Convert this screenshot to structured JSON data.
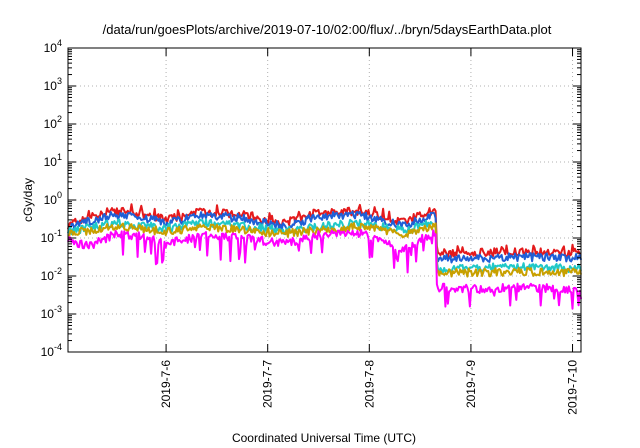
{
  "chart_data": {
    "type": "area",
    "title": "/data/run/goesPlots/archive/2019-07-10/02:00/flux/../bryn/5daysEarthData.plot",
    "xlabel": "Coordinated Universal Time (UTC)",
    "ylabel": "cGy/day",
    "yscale": "log",
    "ylim": [
      0.0001,
      10000
    ],
    "ytick_labels": [
      {
        "base": "10",
        "exp": "-4"
      },
      {
        "base": "10",
        "exp": "-3"
      },
      {
        "base": "10",
        "exp": "-2"
      },
      {
        "base": "10",
        "exp": "-1"
      },
      {
        "base": "10",
        "exp": "0"
      },
      {
        "base": "10",
        "exp": "1"
      },
      {
        "base": "10",
        "exp": "2"
      },
      {
        "base": "10",
        "exp": "3"
      },
      {
        "base": "10",
        "exp": "4"
      }
    ],
    "xlim": [
      "2019-07-05 00:50",
      "2019-07-10 02:00"
    ],
    "xtick_labels": [
      "2019-7-6",
      "2019-7-7",
      "2019-7-8",
      "2019-7-9",
      "2019-7-10"
    ],
    "grid": true,
    "legend": "none",
    "series": [
      {
        "color": "#e41a1c",
        "samples": [
          {
            "x": "2019-07-05 00:50",
            "y": 0.22
          },
          {
            "x": "2019-07-05 06:00",
            "y": 0.35
          },
          {
            "x": "2019-07-05 12:00",
            "y": 0.5
          },
          {
            "x": "2019-07-05 18:00",
            "y": 0.45
          },
          {
            "x": "2019-07-06 00:00",
            "y": 0.3
          },
          {
            "x": "2019-07-06 09:00",
            "y": 0.5
          },
          {
            "x": "2019-07-06 18:00",
            "y": 0.42
          },
          {
            "x": "2019-07-07 04:00",
            "y": 0.25
          },
          {
            "x": "2019-07-07 12:00",
            "y": 0.48
          },
          {
            "x": "2019-07-07 22:00",
            "y": 0.5
          },
          {
            "x": "2019-07-08 04:00",
            "y": 0.35
          },
          {
            "x": "2019-07-08 08:00",
            "y": 0.25
          },
          {
            "x": "2019-07-08 14:00",
            "y": 0.48
          },
          {
            "x": "2019-07-08 15:40",
            "y": 0.5
          },
          {
            "x": "2019-07-08 16:00",
            "y": 0.04
          },
          {
            "x": "2019-07-09 00:00",
            "y": 0.04
          },
          {
            "x": "2019-07-09 12:00",
            "y": 0.045
          },
          {
            "x": "2019-07-10 02:00",
            "y": 0.04
          }
        ]
      },
      {
        "color": "#1f5fd6",
        "samples": [
          {
            "x": "2019-07-05 00:50",
            "y": 0.18
          },
          {
            "x": "2019-07-05 06:00",
            "y": 0.28
          },
          {
            "x": "2019-07-05 12:00",
            "y": 0.4
          },
          {
            "x": "2019-07-05 18:00",
            "y": 0.36
          },
          {
            "x": "2019-07-06 00:00",
            "y": 0.24
          },
          {
            "x": "2019-07-06 09:00",
            "y": 0.4
          },
          {
            "x": "2019-07-06 18:00",
            "y": 0.33
          },
          {
            "x": "2019-07-07 04:00",
            "y": 0.2
          },
          {
            "x": "2019-07-07 12:00",
            "y": 0.38
          },
          {
            "x": "2019-07-07 22:00",
            "y": 0.4
          },
          {
            "x": "2019-07-08 04:00",
            "y": 0.28
          },
          {
            "x": "2019-07-08 08:00",
            "y": 0.2
          },
          {
            "x": "2019-07-08 14:00",
            "y": 0.38
          },
          {
            "x": "2019-07-08 15:40",
            "y": 0.4
          },
          {
            "x": "2019-07-08 16:00",
            "y": 0.03
          },
          {
            "x": "2019-07-09 00:00",
            "y": 0.028
          },
          {
            "x": "2019-07-09 12:00",
            "y": 0.032
          },
          {
            "x": "2019-07-10 02:00",
            "y": 0.03
          }
        ]
      },
      {
        "color": "#20c8c8",
        "samples": [
          {
            "x": "2019-07-05 00:50",
            "y": 0.15
          },
          {
            "x": "2019-07-05 12:00",
            "y": 0.25
          },
          {
            "x": "2019-07-06 00:00",
            "y": 0.18
          },
          {
            "x": "2019-07-06 09:00",
            "y": 0.25
          },
          {
            "x": "2019-07-07 04:00",
            "y": 0.16
          },
          {
            "x": "2019-07-07 22:00",
            "y": 0.25
          },
          {
            "x": "2019-07-08 08:00",
            "y": 0.16
          },
          {
            "x": "2019-07-08 15:40",
            "y": 0.25
          },
          {
            "x": "2019-07-08 16:00",
            "y": 0.016
          },
          {
            "x": "2019-07-09 12:00",
            "y": 0.017
          },
          {
            "x": "2019-07-10 02:00",
            "y": 0.016
          }
        ]
      },
      {
        "color": "#c8a000",
        "samples": [
          {
            "x": "2019-07-05 00:50",
            "y": 0.13
          },
          {
            "x": "2019-07-05 12:00",
            "y": 0.2
          },
          {
            "x": "2019-07-06 00:00",
            "y": 0.15
          },
          {
            "x": "2019-07-06 09:00",
            "y": 0.2
          },
          {
            "x": "2019-07-07 04:00",
            "y": 0.13
          },
          {
            "x": "2019-07-07 22:00",
            "y": 0.2
          },
          {
            "x": "2019-07-08 08:00",
            "y": 0.13
          },
          {
            "x": "2019-07-08 15:40",
            "y": 0.2
          },
          {
            "x": "2019-07-08 16:00",
            "y": 0.012
          },
          {
            "x": "2019-07-09 12:00",
            "y": 0.013
          },
          {
            "x": "2019-07-10 02:00",
            "y": 0.012
          }
        ]
      },
      {
        "color": "#ff00ff",
        "samples": [
          {
            "x": "2019-07-05 00:50",
            "y": 0.09
          },
          {
            "x": "2019-07-05 06:00",
            "y": 0.06
          },
          {
            "x": "2019-07-05 12:00",
            "y": 0.13
          },
          {
            "x": "2019-07-05 18:00",
            "y": 0.11
          },
          {
            "x": "2019-07-06 00:00",
            "y": 0.07
          },
          {
            "x": "2019-07-06 09:00",
            "y": 0.12
          },
          {
            "x": "2019-07-06 18:00",
            "y": 0.1
          },
          {
            "x": "2019-07-07 04:00",
            "y": 0.07
          },
          {
            "x": "2019-07-07 12:00",
            "y": 0.12
          },
          {
            "x": "2019-07-07 22:00",
            "y": 0.13
          },
          {
            "x": "2019-07-08 04:00",
            "y": 0.08
          },
          {
            "x": "2019-07-08 08:00",
            "y": 0.05
          },
          {
            "x": "2019-07-08 14:00",
            "y": 0.12
          },
          {
            "x": "2019-07-08 15:40",
            "y": 0.13
          },
          {
            "x": "2019-07-08 16:00",
            "y": 0.005
          },
          {
            "x": "2019-07-09 00:00",
            "y": 0.0045
          },
          {
            "x": "2019-07-09 12:00",
            "y": 0.005
          },
          {
            "x": "2019-07-10 02:00",
            "y": 0.0045
          }
        ]
      }
    ]
  }
}
